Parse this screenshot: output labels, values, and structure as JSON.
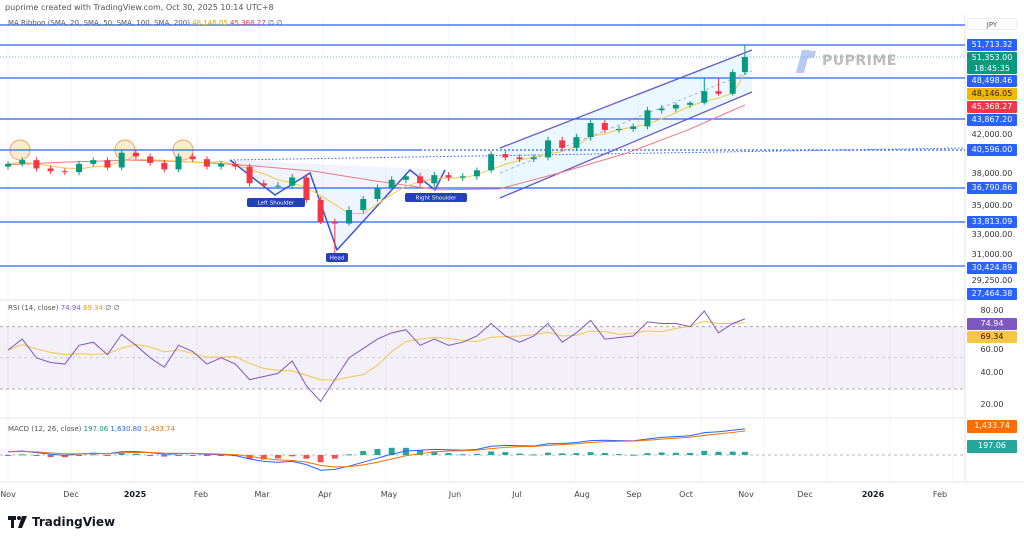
{
  "header": {
    "attribution": "puprime created with TradingView.com, Oct 30, 2025 10:14 UTC+8"
  },
  "legend": {
    "ma_ribbon": "MA Ribbon (SMA, 20, SMA, 50, SMA, 100, SMA, 200)",
    "ma1": "48,146.05",
    "ma2": "45,368.27",
    "icons": "∅ ∅"
  },
  "currency": "JPY",
  "watermark": "PUPRIME",
  "annotations": {
    "left_shoulder": "Left Shoulder",
    "head": "Head",
    "right_shoulder": "Right Shoulder"
  },
  "rsi": {
    "label": "RSI (14, close)",
    "value": "74.94",
    "ma": "69.34",
    "icons": "∅ ∅"
  },
  "macd": {
    "label": "MACD (12, 26, close)",
    "hist": "197.06",
    "macd": "1,630.80",
    "signal": "1,433.74"
  },
  "footer": {
    "brand": "TradingView"
  },
  "colors": {
    "up": "#089981",
    "down": "#f23645",
    "level": "#2962ff",
    "sma20": "#f7c548",
    "sma200": "#f0787d",
    "channel": "#6a5acd",
    "rsi": "#7e57c2",
    "macd": "#2962ff",
    "signal": "#ff6d00"
  },
  "chart_data": [
    {
      "type": "candlestick",
      "title": "",
      "scale": "log",
      "x": [
        "2024-11-01",
        "2024-11-08",
        "2024-11-15",
        "2024-11-22",
        "2024-11-29",
        "2024-12-06",
        "2024-12-13",
        "2024-12-20",
        "2024-12-27",
        "2025-01-03",
        "2025-01-10",
        "2025-01-17",
        "2025-01-24",
        "2025-01-31",
        "2025-02-07",
        "2025-02-14",
        "2025-02-21",
        "2025-02-28",
        "2025-03-07",
        "2025-03-14",
        "2025-03-21",
        "2025-03-28",
        "2025-04-04",
        "2025-04-11",
        "2025-04-18",
        "2025-04-25",
        "2025-05-02",
        "2025-05-09",
        "2025-05-16",
        "2025-05-23",
        "2025-05-30",
        "2025-06-06",
        "2025-06-13",
        "2025-06-20",
        "2025-06-27",
        "2025-07-04",
        "2025-07-11",
        "2025-07-18",
        "2025-07-25",
        "2025-08-01",
        "2025-08-08",
        "2025-08-15",
        "2025-08-22",
        "2025-08-29",
        "2025-09-05",
        "2025-09-12",
        "2025-09-19",
        "2025-09-26",
        "2025-10-03",
        "2025-10-10",
        "2025-10-17",
        "2025-10-24",
        "2025-10-30"
      ],
      "close": [
        39100,
        39500,
        38600,
        38300,
        38200,
        39100,
        39500,
        38700,
        40300,
        39900,
        39200,
        38500,
        39900,
        39600,
        38800,
        39100,
        38800,
        37200,
        37000,
        37000,
        37700,
        35600,
        33800,
        33600,
        34700,
        35700,
        36800,
        37500,
        37800,
        37200,
        37900,
        37700,
        37800,
        38400,
        40150,
        39800,
        39600,
        39800,
        41500,
        40800,
        41800,
        43400,
        42600,
        42700,
        43000,
        44800,
        45000,
        45400,
        45800,
        48100,
        47600,
        49300,
        51353
      ],
      "sma200": {
        "x": [
          "2024-11-01",
          "2024-12-01",
          "2025-01-01",
          "2025-02-01",
          "2025-03-01",
          "2025-04-01",
          "2025-05-01",
          "2025-06-01",
          "2025-07-01",
          "2025-08-01",
          "2025-09-01",
          "2025-10-01",
          "2025-10-30"
        ],
        "values": [
          39000,
          39300,
          39500,
          39300,
          38900,
          38300,
          37400,
          36600,
          36700,
          38200,
          40200,
          42500,
          45368.27
        ]
      },
      "levels": [
        51713.32,
        48498.46,
        43867.2,
        40596.0,
        36790.86,
        33813.09,
        30424.89
      ],
      "price_tags": [
        {
          "value": "51,713.32",
          "kind": "level"
        },
        {
          "value": "51,353.00",
          "kind": "last",
          "countdown": "18:45:35"
        },
        {
          "value": "48,498.46",
          "kind": "level"
        },
        {
          "value": "48,146.05",
          "kind": "sma20"
        },
        {
          "value": "45,368.27",
          "kind": "sma200"
        },
        {
          "value": "43,867.20",
          "kind": "level"
        },
        {
          "value": "42,000.00",
          "kind": "tick"
        },
        {
          "value": "40,596.00",
          "kind": "level"
        },
        {
          "value": "38,000.00",
          "kind": "tick"
        },
        {
          "value": "36,790.86",
          "kind": "level"
        },
        {
          "value": "35,000.00",
          "kind": "tick"
        },
        {
          "value": "33,813.09",
          "kind": "level"
        },
        {
          "value": "33,000.00",
          "kind": "tick"
        },
        {
          "value": "31,000.00",
          "kind": "tick"
        },
        {
          "value": "30,424.89",
          "kind": "level"
        },
        {
          "value": "29,250.00",
          "kind": "tick"
        },
        {
          "value": "27,464.38",
          "kind": "level"
        }
      ],
      "xticks": [
        "Nov",
        "Dec",
        "2025",
        "Feb",
        "Mar",
        "Apr",
        "May",
        "Jun",
        "Jul",
        "Aug",
        "Sep",
        "Oct",
        "Nov",
        "Dec",
        "2026",
        "Feb"
      ]
    },
    {
      "type": "line",
      "name": "RSI",
      "yticks": [
        "80.00",
        "60.00",
        "40.00",
        "20.00"
      ],
      "band": [
        30,
        70
      ],
      "values": [
        55,
        62,
        50,
        47,
        46,
        58,
        60,
        52,
        65,
        58,
        50,
        44,
        58,
        54,
        46,
        50,
        46,
        36,
        38,
        40,
        48,
        32,
        22,
        36,
        50,
        56,
        62,
        66,
        68,
        58,
        62,
        58,
        60,
        64,
        72,
        64,
        60,
        64,
        72,
        60,
        66,
        74,
        62,
        63,
        64,
        73,
        72,
        72,
        70,
        80,
        66,
        72,
        74.94
      ]
    },
    {
      "type": "line",
      "name": "MACD",
      "macd": [
        200,
        250,
        150,
        50,
        -20,
        60,
        120,
        80,
        200,
        220,
        150,
        50,
        80,
        100,
        40,
        20,
        -30,
        -250,
        -400,
        -450,
        -400,
        -600,
        -950,
        -900,
        -700,
        -450,
        -200,
        50,
        250,
        300,
        350,
        330,
        300,
        350,
        550,
        600,
        580,
        560,
        700,
        720,
        780,
        900,
        920,
        900,
        880,
        1000,
        1100,
        1150,
        1200,
        1400,
        1450,
        1550,
        1630.8
      ]
    }
  ]
}
